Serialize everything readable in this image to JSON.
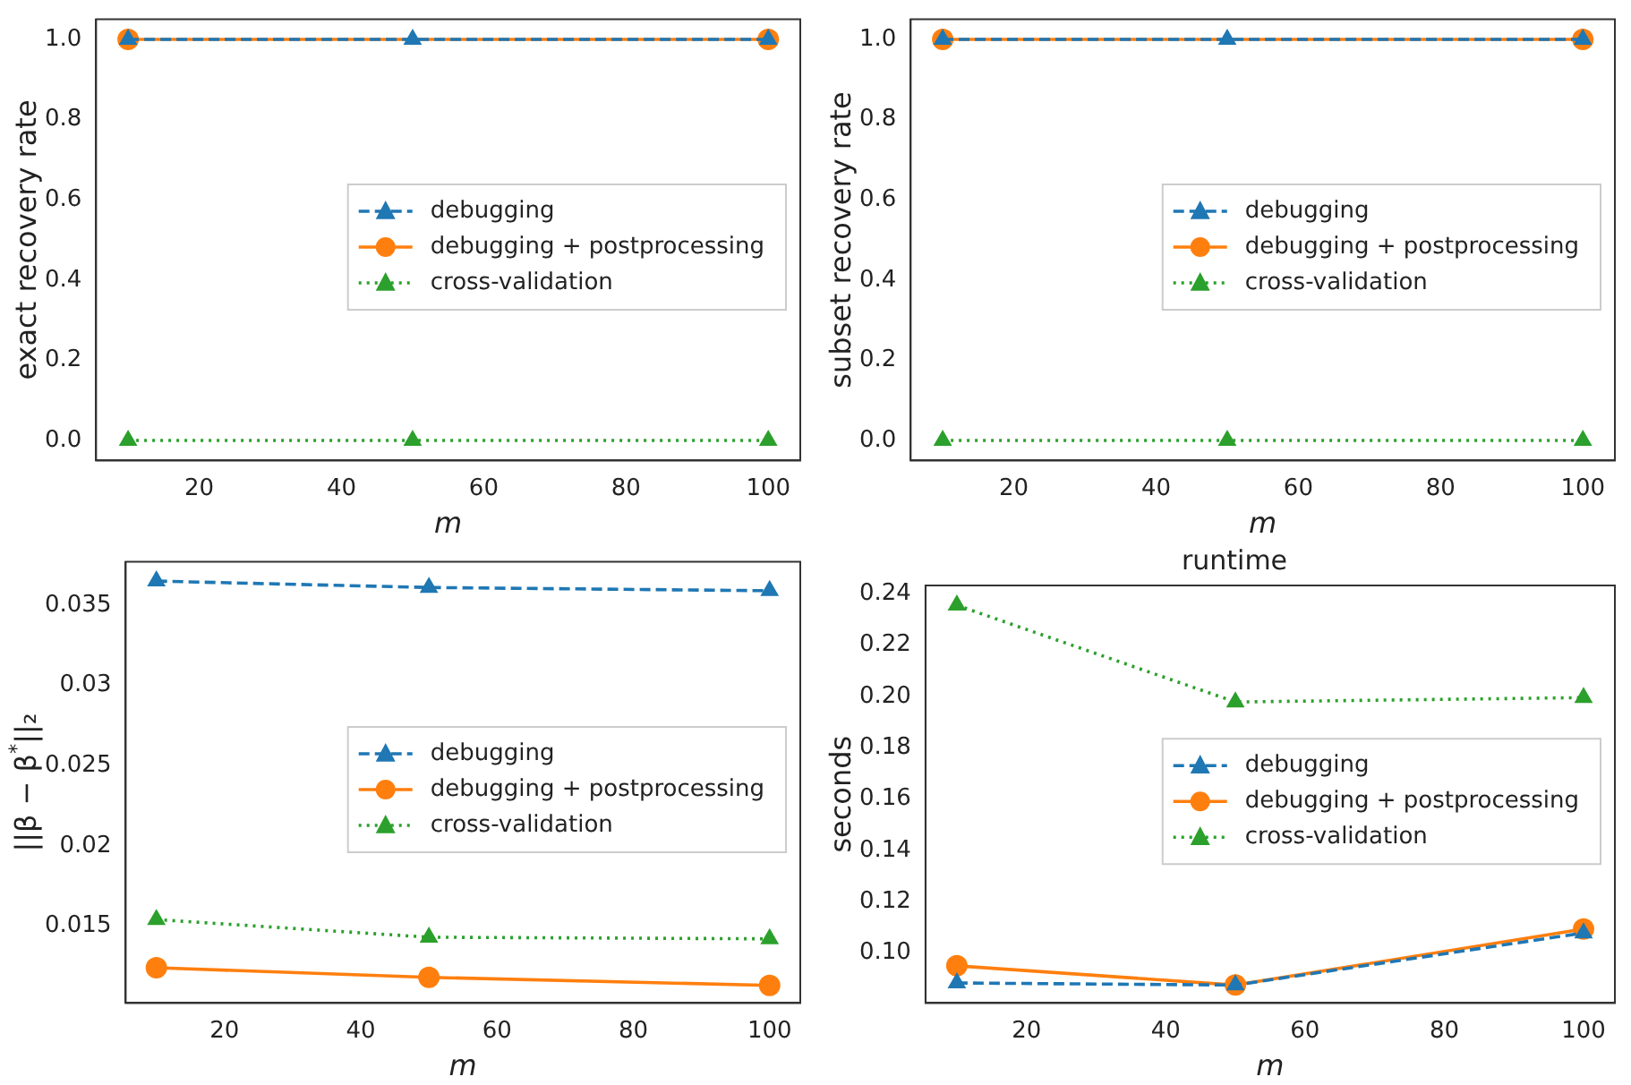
{
  "chart_data": [
    {
      "type": "line",
      "xlabel": "m",
      "ylabel": "exact recovery rate",
      "xlim": [
        5.5,
        104.5
      ],
      "xticks": [
        20,
        40,
        60,
        80,
        100
      ],
      "ylim": [
        -0.05,
        1.05
      ],
      "yticks": [
        {
          "value": 0,
          "label": "0.0"
        },
        {
          "value": 0.2,
          "label": "0.2"
        },
        {
          "value": 0.4,
          "label": "0.4"
        },
        {
          "value": 0.6,
          "label": "0.6"
        },
        {
          "value": 0.8,
          "label": "0.8"
        },
        {
          "value": 1,
          "label": "1.0"
        }
      ],
      "legend": "center right",
      "grid": false,
      "series": [
        {
          "name": "debugging",
          "color": "#1f77b4",
          "x": [
            10,
            50,
            100
          ],
          "values": [
            1,
            1,
            1
          ],
          "marker": "triangle",
          "line_style": "dashed"
        },
        {
          "name": "debugging + postprocessing",
          "color": "#ff7f0e",
          "x": [
            10,
            50,
            100
          ],
          "values": [
            1,
            null,
            1
          ],
          "marker": "circle",
          "line_style": "solid"
        },
        {
          "name": "cross-validation",
          "color": "#2ca02c",
          "x": [
            10,
            50,
            100
          ],
          "values": [
            0,
            0,
            0
          ],
          "marker": "triangle",
          "line_style": "dotted"
        }
      ]
    },
    {
      "type": "line",
      "xlabel": "m",
      "ylabel": "subset recovery rate",
      "xlim": [
        5.5,
        104.5
      ],
      "xticks": [
        20,
        40,
        60,
        80,
        100
      ],
      "ylim": [
        -0.05,
        1.05
      ],
      "yticks": [
        {
          "value": 0,
          "label": "0.0"
        },
        {
          "value": 0.2,
          "label": "0.2"
        },
        {
          "value": 0.4,
          "label": "0.4"
        },
        {
          "value": 0.6,
          "label": "0.6"
        },
        {
          "value": 0.8,
          "label": "0.8"
        },
        {
          "value": 1,
          "label": "1.0"
        }
      ],
      "legend": "center right",
      "grid": false,
      "series": [
        {
          "name": "debugging",
          "color": "#1f77b4",
          "x": [
            10,
            50,
            100
          ],
          "values": [
            1,
            1,
            1
          ],
          "marker": "triangle",
          "line_style": "dashed"
        },
        {
          "name": "debugging + postprocessing",
          "color": "#ff7f0e",
          "x": [
            10,
            50,
            100
          ],
          "values": [
            1,
            null,
            1
          ],
          "marker": "circle",
          "line_style": "solid"
        },
        {
          "name": "cross-validation",
          "color": "#2ca02c",
          "x": [
            10,
            50,
            100
          ],
          "values": [
            0,
            0,
            0
          ],
          "marker": "triangle",
          "line_style": "dotted"
        }
      ]
    },
    {
      "type": "line",
      "xlabel": "m",
      "ylabel": "||β − β$^{*}$||₂",
      "xlim": [
        5.5,
        104.5
      ],
      "xticks": [
        20,
        40,
        60,
        80,
        100
      ],
      "ylim": [
        0.0102,
        0.0377
      ],
      "yticks": [
        0.015,
        0.02,
        0.025,
        0.03,
        0.035
      ],
      "legend": "center right",
      "grid": false,
      "series": [
        {
          "name": "debugging",
          "color": "#1f77b4",
          "x": [
            10,
            50,
            100
          ],
          "values": [
            0.0365,
            0.0361,
            0.0359
          ],
          "marker": "triangle",
          "line_style": "dashed"
        },
        {
          "name": "debugging + postprocessing",
          "color": "#ff7f0e",
          "x": [
            10,
            50,
            100
          ],
          "values": [
            0.0124,
            0.0118,
            0.0113
          ],
          "marker": "circle",
          "line_style": "solid"
        },
        {
          "name": "cross-validation",
          "color": "#2ca02c",
          "x": [
            10,
            50,
            100
          ],
          "values": [
            0.0154,
            0.0143,
            0.0142
          ],
          "marker": "triangle",
          "line_style": "dotted"
        }
      ]
    },
    {
      "type": "line",
      "title": "runtime",
      "xlabel": "m",
      "ylabel": "seconds",
      "xlim": [
        5.5,
        104.5
      ],
      "xticks": [
        20,
        40,
        60,
        80,
        100
      ],
      "ylim": [
        0.0805,
        0.2432
      ],
      "yticks": [
        {
          "value": 0.1,
          "label": "0.10"
        },
        {
          "value": 0.12,
          "label": "0.12"
        },
        {
          "value": 0.14,
          "label": "0.14"
        },
        {
          "value": 0.16,
          "label": "0.16"
        },
        {
          "value": 0.18,
          "label": "0.18"
        },
        {
          "value": 0.2,
          "label": "0.20"
        },
        {
          "value": 0.22,
          "label": "0.22"
        },
        {
          "value": 0.24,
          "label": "0.24"
        }
      ],
      "legend": "center right",
      "grid": false,
      "series": [
        {
          "name": "debugging",
          "color": "#1f77b4",
          "x": [
            10,
            50,
            100
          ],
          "values": [
            0.0883,
            0.0875,
            0.1078
          ],
          "marker": "triangle",
          "line_style": "dashed"
        },
        {
          "name": "debugging + postprocessing",
          "color": "#ff7f0e",
          "x": [
            10,
            50,
            100
          ],
          "values": [
            0.095,
            0.0875,
            0.1093
          ],
          "marker": "circle",
          "line_style": "solid"
        },
        {
          "name": "cross-validation",
          "color": "#2ca02c",
          "x": [
            10,
            50,
            100
          ],
          "values": [
            0.2355,
            0.1978,
            0.1995
          ],
          "marker": "triangle",
          "line_style": "dotted"
        }
      ]
    }
  ]
}
